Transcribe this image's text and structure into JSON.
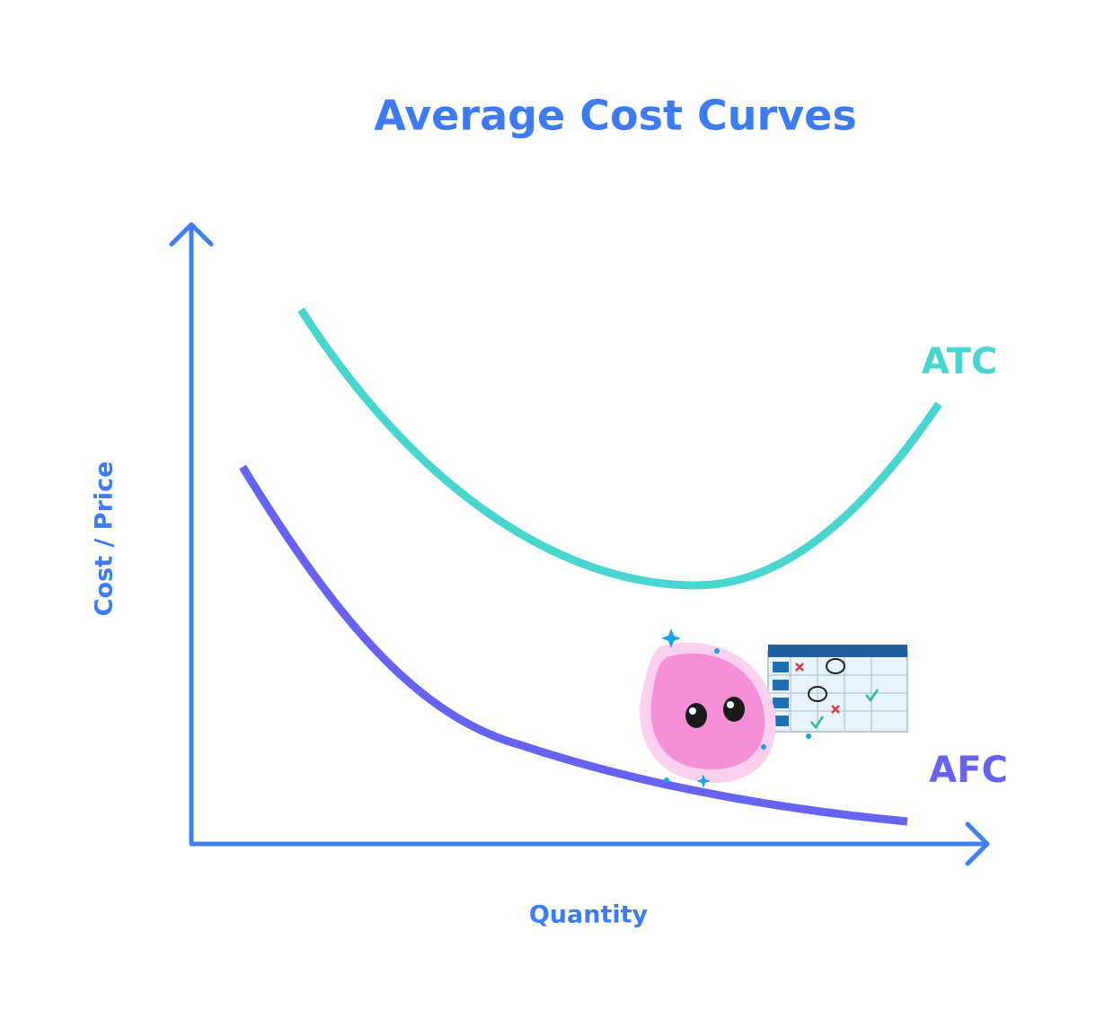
{
  "title": "Average Cost Curves",
  "x_axis_label": "Quantity",
  "y_axis_label": "Cost / Price",
  "curves": [
    {
      "label": "ATC"
    },
    {
      "label": "AFC"
    }
  ]
}
